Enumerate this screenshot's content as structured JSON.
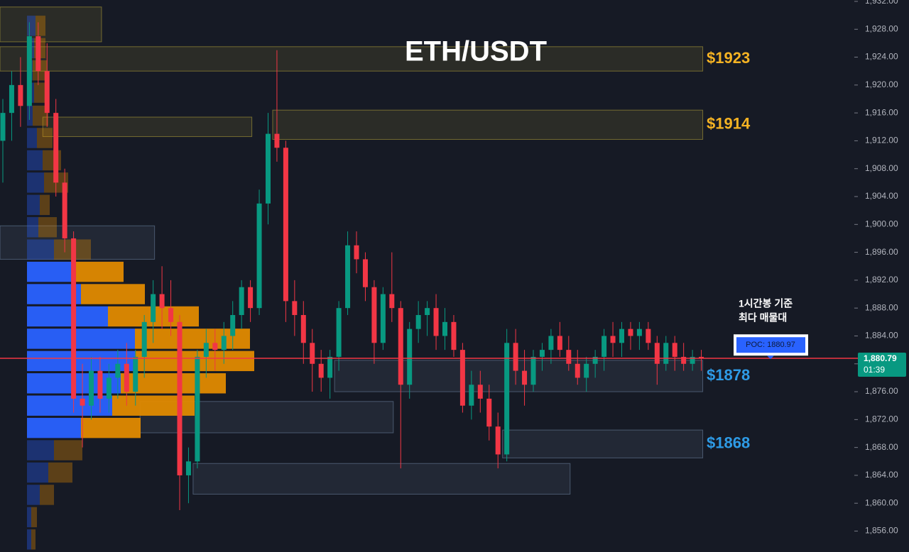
{
  "chart_data": {
    "type": "candlestick",
    "title": "ETH/USDT",
    "ylim": [
      1853,
      1932.2
    ],
    "yticks": [
      {
        "value": 1856,
        "label": "1,856.00"
      },
      {
        "value": 1860,
        "label": "1,860.00"
      },
      {
        "value": 1864,
        "label": "1,864.00"
      },
      {
        "value": 1868,
        "label": "1,868.00"
      },
      {
        "value": 1872,
        "label": "1,872.00"
      },
      {
        "value": 1876,
        "label": "1,876.00"
      },
      {
        "value": 1880,
        "label": "1,880.00"
      },
      {
        "value": 1884,
        "label": "1,884.00"
      },
      {
        "value": 1888,
        "label": "1,888.00"
      },
      {
        "value": 1892,
        "label": "1,892.00"
      },
      {
        "value": 1896,
        "label": "1,896.00"
      },
      {
        "value": 1900,
        "label": "1,900.00"
      },
      {
        "value": 1904,
        "label": "1,904.00"
      },
      {
        "value": 1908,
        "label": "1,908.00"
      },
      {
        "value": 1912,
        "label": "1,912.00"
      },
      {
        "value": 1916,
        "label": "1,916.00"
      },
      {
        "value": 1920,
        "label": "1,920.00"
      },
      {
        "value": 1924,
        "label": "1,924.00"
      },
      {
        "value": 1928,
        "label": "1,928.00"
      },
      {
        "value": 1932,
        "label": "1,932.00"
      }
    ],
    "up_color": "#089981",
    "down_color": "#f23645",
    "open": [
      1912,
      1916,
      1920,
      1917,
      1927,
      1922,
      1916,
      1906,
      1898,
      1875,
      1874,
      1879,
      1875,
      1878,
      1880,
      1876,
      1881,
      1886,
      1890,
      1888,
      1886,
      1864,
      1866,
      1881,
      1883,
      1882,
      1884,
      1887,
      1891,
      1888,
      1903,
      1913,
      1911,
      1889,
      1887,
      1883,
      1880,
      1878,
      1881,
      1888,
      1897,
      1895,
      1891,
      1883,
      1890,
      1888,
      1877,
      1885,
      1887,
      1888,
      1884,
      1886,
      1882,
      1874,
      1877,
      1875,
      1871,
      1867,
      1883,
      1879,
      1877,
      1881,
      1882,
      1884,
      1882,
      1880,
      1878,
      1880,
      1881,
      1884,
      1883,
      1885,
      1884,
      1885,
      1883,
      1880,
      1883,
      1881,
      1880,
      1881
    ],
    "high": [
      1918,
      1922,
      1924,
      1929,
      1929,
      1926,
      1918,
      1908,
      1899,
      1880,
      1881,
      1881,
      1880,
      1882,
      1883,
      1882,
      1887,
      1892,
      1894,
      1892,
      1887,
      1868,
      1882,
      1885,
      1885,
      1886,
      1889,
      1892,
      1892,
      1905,
      1916,
      1925,
      1912,
      1892,
      1889,
      1885,
      1882,
      1882,
      1889,
      1899,
      1899,
      1896,
      1892,
      1891,
      1896,
      1889,
      1886,
      1889,
      1889,
      1890,
      1888,
      1887,
      1883,
      1879,
      1879,
      1877,
      1873,
      1885,
      1885,
      1882,
      1882,
      1883,
      1885,
      1886,
      1884,
      1882,
      1881,
      1882,
      1885,
      1886,
      1886,
      1886,
      1886,
      1886,
      1884,
      1884,
      1884,
      1883,
      1882,
      1882
    ],
    "low": [
      1906,
      1912,
      1914,
      1915,
      1920,
      1914,
      1904,
      1896,
      1873,
      1868,
      1872,
      1873,
      1873,
      1875,
      1874,
      1874,
      1878,
      1883,
      1885,
      1884,
      1859,
      1860,
      1865,
      1878,
      1879,
      1880,
      1882,
      1885,
      1886,
      1887,
      1900,
      1909,
      1886,
      1884,
      1880,
      1876,
      1876,
      1875,
      1879,
      1887,
      1893,
      1889,
      1880,
      1882,
      1886,
      1865,
      1875,
      1883,
      1884,
      1882,
      1882,
      1881,
      1873,
      1872,
      1873,
      1869,
      1865,
      1866,
      1877,
      1874,
      1876,
      1879,
      1880,
      1881,
      1879,
      1877,
      1876,
      1878,
      1879,
      1881,
      1881,
      1882,
      1882,
      1882,
      1877,
      1879,
      1879,
      1879,
      1879,
      1879
    ],
    "close": [
      1916,
      1920,
      1917,
      1927,
      1922,
      1916,
      1906,
      1898,
      1875,
      1874,
      1879,
      1875,
      1878,
      1880,
      1876,
      1881,
      1886,
      1890,
      1888,
      1886,
      1864,
      1866,
      1881,
      1883,
      1882,
      1884,
      1887,
      1891,
      1888,
      1903,
      1913,
      1911,
      1889,
      1887,
      1883,
      1880,
      1878,
      1881,
      1888,
      1897,
      1895,
      1891,
      1883,
      1890,
      1888,
      1877,
      1885,
      1887,
      1888,
      1884,
      1886,
      1882,
      1874,
      1877,
      1875,
      1871,
      1867,
      1883,
      1879,
      1877,
      1881,
      1882,
      1884,
      1882,
      1880,
      1878,
      1880,
      1881,
      1884,
      1883,
      1885,
      1884,
      1885,
      1883,
      1880,
      1883,
      1881,
      1880,
      1881,
      1880.79
    ],
    "volume_profile": {
      "bin_size": 3.2,
      "value_area": [
        1869.2,
        1894.8
      ],
      "buy_color": "#2962ff",
      "sell_color": "#e08a00",
      "levels": [
        1928.5,
        1925.3,
        1922.1,
        1918.9,
        1915.6,
        1912.4,
        1909.2,
        1906.0,
        1902.8,
        1899.6,
        1896.4,
        1893.2,
        1890.0,
        1886.8,
        1883.6,
        1880.4,
        1877.2,
        1874.0,
        1870.8,
        1867.6,
        1864.4,
        1861.2,
        1858.0,
        1854.8
      ],
      "buy": [
        12,
        10,
        8,
        10,
        8,
        14,
        22,
        24,
        18,
        16,
        38,
        64,
        76,
        114,
        152,
        152,
        132,
        120,
        76,
        38,
        30,
        18,
        6,
        6
      ],
      "sell": [
        14,
        16,
        20,
        18,
        22,
        22,
        26,
        34,
        14,
        26,
        52,
        72,
        90,
        128,
        162,
        168,
        148,
        116,
        84,
        40,
        34,
        20,
        8,
        6
      ]
    },
    "zones": [
      {
        "low": 1926.2,
        "high": 1931.2,
        "start": 0,
        "end": 11,
        "color": "#c8b43c"
      },
      {
        "low": 1922,
        "high": 1925.5,
        "start": 0,
        "end": 79,
        "color": "#c8b43c",
        "label": "$1923",
        "label_color": "#f5b323"
      },
      {
        "low": 1912.2,
        "high": 1916.4,
        "start": 31,
        "end": 79,
        "color": "#c8b43c",
        "label": "$1914",
        "label_color": "#f5b323"
      },
      {
        "low": 1912.6,
        "high": 1915.4,
        "start": 5,
        "end": 28,
        "color": "#c8b43c"
      },
      {
        "low": 1895,
        "high": 1899.8,
        "start": 0,
        "end": 17,
        "color": "#7890b0"
      },
      {
        "low": 1876,
        "high": 1880.5,
        "start": 38,
        "end": 79,
        "color": "#7890b0",
        "label": "$1878",
        "label_color": "#2e9be6"
      },
      {
        "low": 1870.1,
        "high": 1874.6,
        "start": 16,
        "end": 44,
        "color": "#7890b0"
      },
      {
        "low": 1866.5,
        "high": 1870.5,
        "start": 57,
        "end": 79,
        "color": "#7890b0",
        "label": "$1868",
        "label_color": "#2e9be6"
      },
      {
        "low": 1861.3,
        "high": 1865.7,
        "start": 22,
        "end": 64,
        "color": "#7890b0"
      }
    ],
    "annotation": [
      "1시간봉 기준",
      "최다 매물대"
    ],
    "poc": {
      "value": 1880.97,
      "label": "POC: 1880.97"
    },
    "last_price": {
      "value": 1880.79,
      "label": "1,880.79",
      "timer": "01:39",
      "color": "#f23645"
    }
  }
}
